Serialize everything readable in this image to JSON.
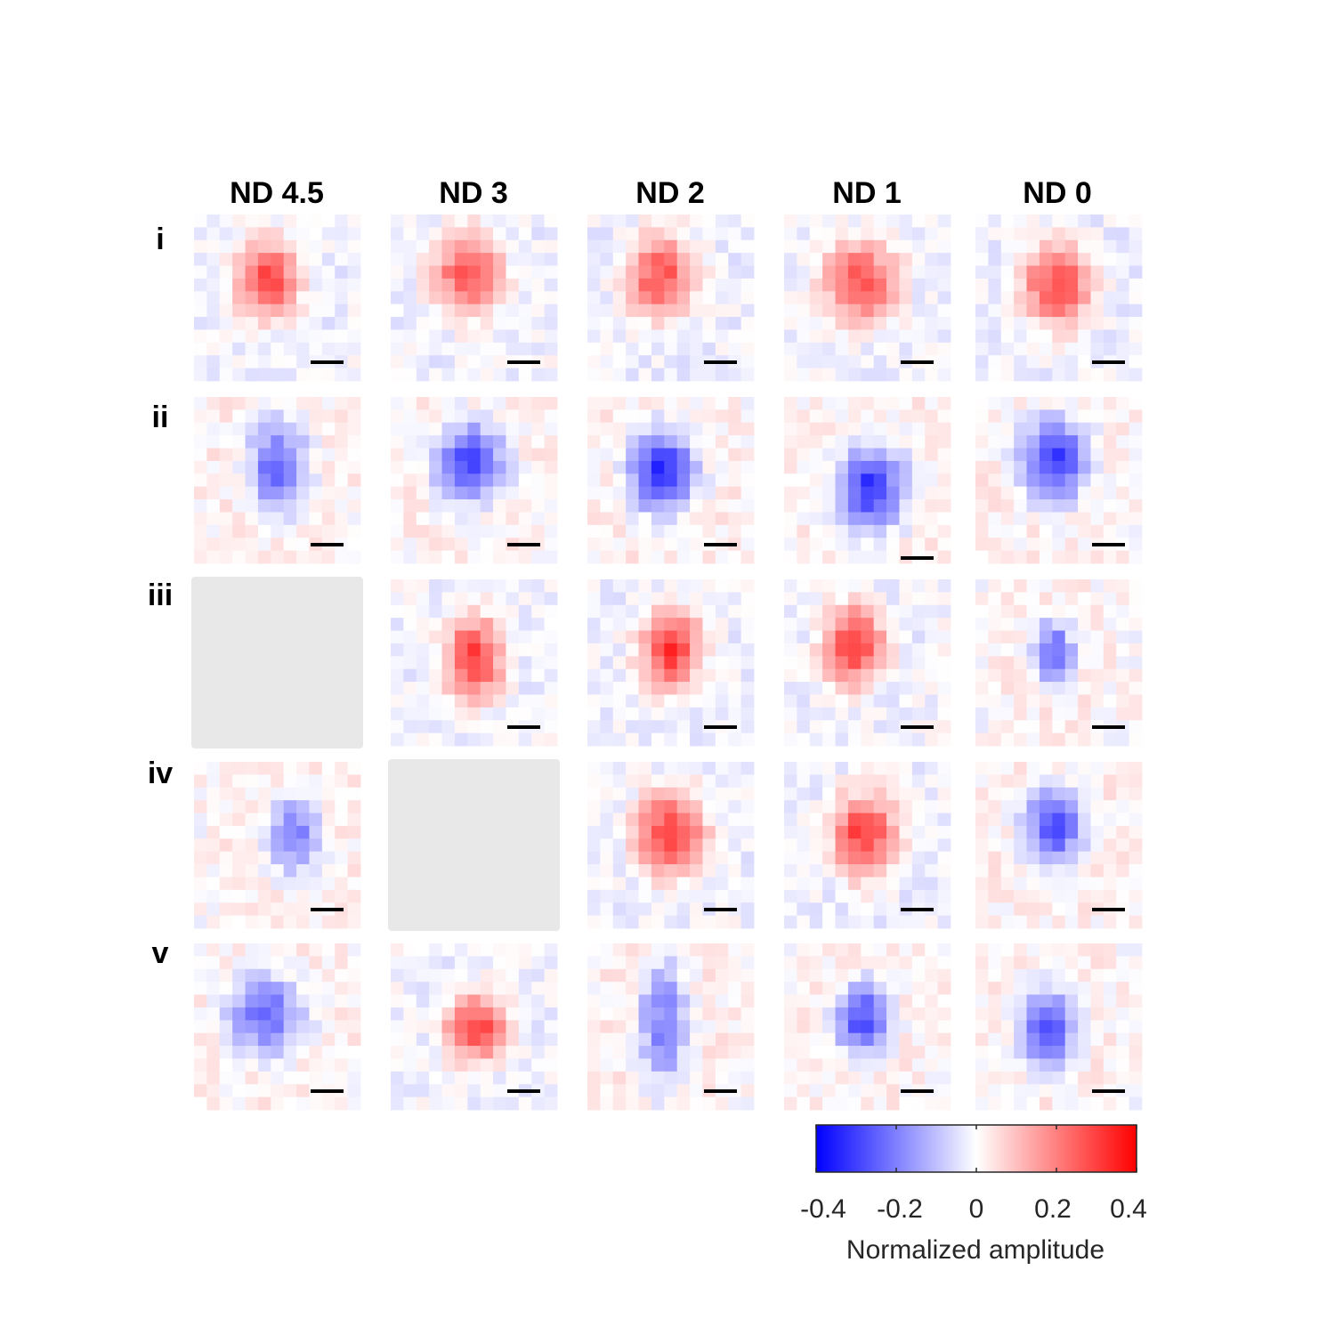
{
  "chart_data": {
    "type": "heatmap",
    "columns": [
      "ND 4.5",
      "ND 3",
      "ND 2",
      "ND 1",
      "ND 0"
    ],
    "rows": [
      "i",
      "ii",
      "iii",
      "iv",
      "v"
    ],
    "colorbar": {
      "label": "Normalized amplitude",
      "range": [
        -0.4,
        0.4
      ],
      "ticks": [
        -0.4,
        -0.2,
        0,
        0.2,
        0.4
      ],
      "tick_labels": [
        "-0.4",
        "-0.2",
        "0",
        "0.2",
        "0.4"
      ],
      "colormap": [
        "#0000ff",
        "#ffffff",
        "#ff0000"
      ]
    },
    "missing_color": "#e8e8e8",
    "panels": [
      [
        {
          "peak": 0.34,
          "cx": 0.45,
          "cy": 0.39,
          "sx": 0.14,
          "sy": 0.17
        },
        {
          "peak": 0.32,
          "cx": 0.46,
          "cy": 0.36,
          "sx": 0.15,
          "sy": 0.18
        },
        {
          "peak": 0.33,
          "cx": 0.44,
          "cy": 0.37,
          "sx": 0.15,
          "sy": 0.18
        },
        {
          "peak": 0.33,
          "cx": 0.46,
          "cy": 0.4,
          "sx": 0.16,
          "sy": 0.18
        },
        {
          "peak": 0.34,
          "cx": 0.49,
          "cy": 0.43,
          "sx": 0.16,
          "sy": 0.18
        }
      ],
      [
        {
          "peak": -0.3,
          "cx": 0.5,
          "cy": 0.42,
          "sx": 0.13,
          "sy": 0.2
        },
        {
          "peak": -0.36,
          "cx": 0.48,
          "cy": 0.4,
          "sx": 0.15,
          "sy": 0.17
        },
        {
          "peak": -0.38,
          "cx": 0.45,
          "cy": 0.45,
          "sx": 0.14,
          "sy": 0.18
        },
        {
          "peak": -0.38,
          "cx": 0.52,
          "cy": 0.55,
          "sx": 0.15,
          "sy": 0.18
        },
        {
          "peak": -0.36,
          "cx": 0.47,
          "cy": 0.38,
          "sx": 0.15,
          "sy": 0.18
        }
      ],
      [
        null,
        {
          "peak": 0.36,
          "cx": 0.5,
          "cy": 0.47,
          "sx": 0.13,
          "sy": 0.18
        },
        {
          "peak": 0.38,
          "cx": 0.5,
          "cy": 0.42,
          "sx": 0.13,
          "sy": 0.17
        },
        {
          "peak": 0.38,
          "cx": 0.42,
          "cy": 0.4,
          "sx": 0.13,
          "sy": 0.17
        },
        {
          "peak": -0.3,
          "cx": 0.47,
          "cy": 0.44,
          "sx": 0.09,
          "sy": 0.14
        }
      ],
      [
        {
          "peak": -0.28,
          "cx": 0.6,
          "cy": 0.44,
          "sx": 0.12,
          "sy": 0.17
        },
        null,
        {
          "peak": 0.36,
          "cx": 0.5,
          "cy": 0.43,
          "sx": 0.15,
          "sy": 0.18
        },
        {
          "peak": 0.36,
          "cx": 0.48,
          "cy": 0.44,
          "sx": 0.14,
          "sy": 0.18
        },
        {
          "peak": -0.34,
          "cx": 0.47,
          "cy": 0.38,
          "sx": 0.13,
          "sy": 0.17
        }
      ],
      [
        {
          "peak": -0.3,
          "cx": 0.43,
          "cy": 0.43,
          "sx": 0.17,
          "sy": 0.17
        },
        {
          "peak": 0.34,
          "cx": 0.52,
          "cy": 0.51,
          "sx": 0.14,
          "sy": 0.15
        },
        {
          "peak": -0.26,
          "cx": 0.46,
          "cy": 0.48,
          "sx": 0.11,
          "sy": 0.28
        },
        {
          "peak": -0.34,
          "cx": 0.47,
          "cy": 0.46,
          "sx": 0.12,
          "sy": 0.16
        },
        {
          "peak": -0.34,
          "cx": 0.43,
          "cy": 0.51,
          "sx": 0.12,
          "sy": 0.17
        }
      ]
    ]
  }
}
